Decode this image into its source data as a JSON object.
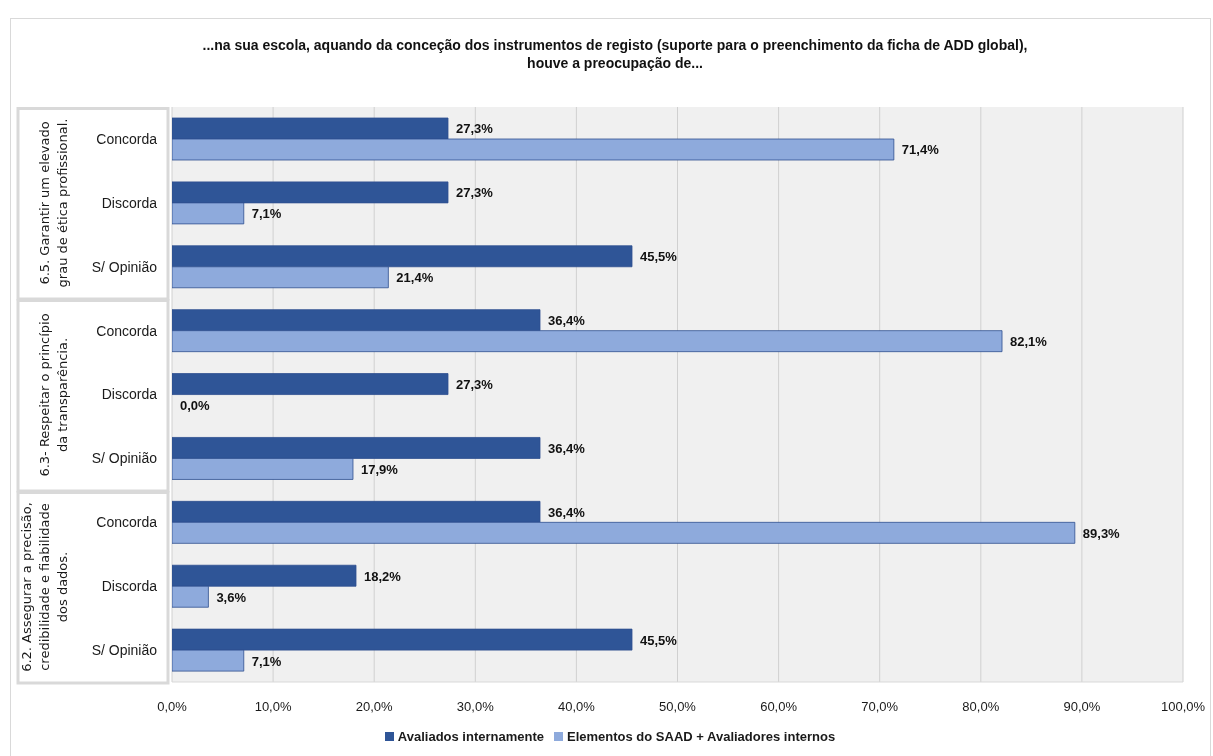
{
  "chart_data": {
    "type": "bar",
    "orientation": "horizontal",
    "title": "...na sua escola, aquando da conceção dos instrumentos de registo (suporte para o preenchimento da ficha de ADD global), houve a preocupação de...",
    "categories": [
      "Concorda",
      "Discorda",
      "S/ Opinião",
      "Concorda",
      "Discorda",
      "S/ Opinião",
      "Concorda",
      "Discorda",
      "S/ Opinião"
    ],
    "annotations": [
      "6.5. Garantir um elevado grau de ética profissional.",
      "6.3- Respeitar o princípio da transparência.",
      "6.2. Assegurar a precisão, credibilidade e fiabilidade dos dados."
    ],
    "series": [
      {
        "name": "Avaliados internamente",
        "color": "#2f5597",
        "values": [
          27.3,
          27.3,
          45.5,
          36.4,
          27.3,
          36.4,
          36.4,
          18.2,
          45.5
        ],
        "value_labels": [
          "27,3%",
          "27,3%",
          "45,5%",
          "36,4%",
          "27,3%",
          "36,4%",
          "36,4%",
          "18,2%",
          "45,5%"
        ]
      },
      {
        "name": "Elementos do SAAD + Avaliadores internos",
        "color": "#8eaadc",
        "values": [
          71.4,
          7.1,
          21.4,
          82.1,
          0.0,
          17.9,
          89.3,
          3.6,
          7.1
        ],
        "value_labels": [
          "71,4%",
          "7,1%",
          "21,4%",
          "82,1%",
          "0,0%",
          "17,9%",
          "89,3%",
          "3,6%",
          "7,1%"
        ]
      }
    ],
    "xlim": [
      0,
      100
    ],
    "xticks": [
      {
        "value": 0,
        "label": "0,0%"
      },
      {
        "value": 10,
        "label": "10,0%"
      },
      {
        "value": 20,
        "label": "20,0%"
      },
      {
        "value": 30,
        "label": "30,0%"
      },
      {
        "value": 40,
        "label": "40,0%"
      },
      {
        "value": 50,
        "label": "50,0%"
      },
      {
        "value": 60,
        "label": "60,0%"
      },
      {
        "value": 70,
        "label": "70,0%"
      },
      {
        "value": 80,
        "label": "80,0%"
      },
      {
        "value": 90,
        "label": "90,0%"
      },
      {
        "value": 100,
        "label": "100,0%"
      }
    ],
    "grid": "x",
    "legend": "bottom"
  }
}
